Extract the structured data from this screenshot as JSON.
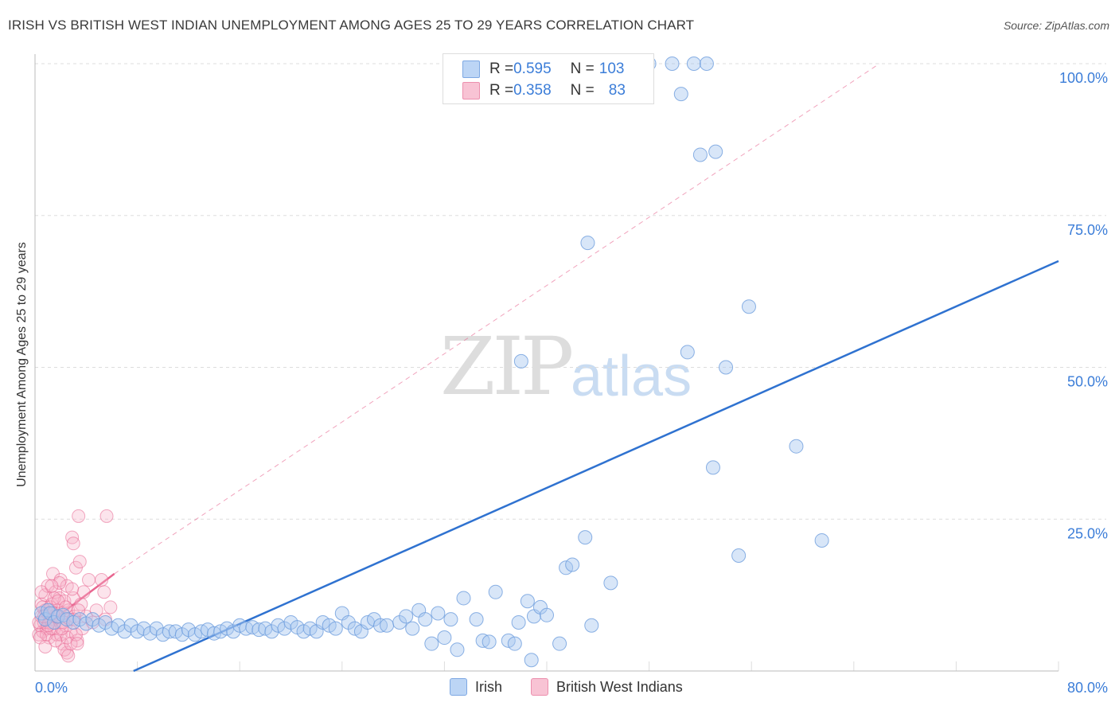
{
  "title": "IRISH VS BRITISH WEST INDIAN UNEMPLOYMENT AMONG AGES 25 TO 29 YEARS CORRELATION CHART",
  "source": "Source: ZipAtlas.com",
  "watermark_zip": "ZIP",
  "watermark_atlas": "atlas",
  "colors": {
    "irish": "#a9c8f0",
    "irish_line": "#2f72d0",
    "bwi": "#f5b3c8",
    "bwi_line": "#e8658f",
    "grid": "#dddddd",
    "tick_text": "#3b7dd8"
  },
  "legend": {
    "irish": {
      "r_label": "R = ",
      "r_value": "0.595",
      "n_label": "N = ",
      "n_value": "103"
    },
    "bwi": {
      "r_label": "R = ",
      "r_value": "0.358",
      "n_label": "N = ",
      "n_value": "83"
    }
  },
  "bottom_legend": {
    "irish": "Irish",
    "bwi": "British West Indians"
  },
  "chart_data": {
    "type": "scatter",
    "title": "IRISH VS BRITISH WEST INDIAN UNEMPLOYMENT AMONG AGES 25 TO 29 YEARS CORRELATION CHART",
    "xlabel": "",
    "ylabel": "Unemployment Among Ages 25 to 29 years",
    "xlim": [
      0,
      80
    ],
    "ylim": [
      0,
      100
    ],
    "x_tick_labels": [
      "0.0%",
      "80.0%"
    ],
    "y_ticks": [
      25,
      50,
      75,
      100
    ],
    "y_tick_labels": [
      "25.0%",
      "50.0%",
      "75.0%",
      "100.0%"
    ],
    "grid": true,
    "series": [
      {
        "name": "Irish",
        "trend": {
          "x": [
            7.7,
            80
          ],
          "y": [
            0,
            67.5
          ]
        },
        "points": [
          [
            0.5,
            9.5
          ],
          [
            0.8,
            8.5
          ],
          [
            1.0,
            10
          ],
          [
            1.2,
            9.5
          ],
          [
            1.5,
            8
          ],
          [
            1.8,
            9
          ],
          [
            2.2,
            9.2
          ],
          [
            2.5,
            8.5
          ],
          [
            3.0,
            8
          ],
          [
            3.5,
            8.5
          ],
          [
            4.0,
            7.8
          ],
          [
            4.5,
            8.5
          ],
          [
            5.0,
            7.5
          ],
          [
            5.5,
            8
          ],
          [
            6.0,
            7
          ],
          [
            6.5,
            7.5
          ],
          [
            7.0,
            6.5
          ],
          [
            7.5,
            7.5
          ],
          [
            8.0,
            6.5
          ],
          [
            8.5,
            7
          ],
          [
            9.0,
            6.2
          ],
          [
            9.5,
            7
          ],
          [
            10.0,
            6
          ],
          [
            10.5,
            6.5
          ],
          [
            11.0,
            6.5
          ],
          [
            11.5,
            6
          ],
          [
            12.0,
            6.8
          ],
          [
            12.5,
            6
          ],
          [
            13.0,
            6.5
          ],
          [
            13.5,
            6.8
          ],
          [
            14.0,
            6.2
          ],
          [
            14.5,
            6.5
          ],
          [
            15.0,
            7
          ],
          [
            15.5,
            6.5
          ],
          [
            16.0,
            7.5
          ],
          [
            16.5,
            7
          ],
          [
            17.0,
            7.2
          ],
          [
            17.5,
            6.8
          ],
          [
            18.0,
            7
          ],
          [
            18.5,
            6.5
          ],
          [
            19.0,
            7.5
          ],
          [
            19.5,
            7
          ],
          [
            20.0,
            8
          ],
          [
            20.5,
            7.2
          ],
          [
            21.0,
            6.5
          ],
          [
            21.5,
            7
          ],
          [
            22.0,
            6.5
          ],
          [
            22.5,
            8
          ],
          [
            23.0,
            7.5
          ],
          [
            23.5,
            7
          ],
          [
            24.0,
            9.5
          ],
          [
            24.5,
            8
          ],
          [
            25.0,
            7
          ],
          [
            25.5,
            6.5
          ],
          [
            26.0,
            8
          ],
          [
            26.5,
            8.5
          ],
          [
            27.0,
            7.5
          ],
          [
            27.5,
            7.5
          ],
          [
            28.5,
            8
          ],
          [
            29.0,
            9
          ],
          [
            29.5,
            7
          ],
          [
            30.0,
            10
          ],
          [
            30.5,
            8.5
          ],
          [
            31.5,
            9.5
          ],
          [
            31.0,
            4.5
          ],
          [
            32.0,
            5.5
          ],
          [
            32.5,
            8.5
          ],
          [
            33.0,
            3.5
          ],
          [
            33.5,
            12
          ],
          [
            34.5,
            8.5
          ],
          [
            35.0,
            5
          ],
          [
            35.5,
            4.8
          ],
          [
            36.0,
            13
          ],
          [
            37.0,
            5
          ],
          [
            37.5,
            4.5
          ],
          [
            37.8,
            8
          ],
          [
            38.5,
            11.5
          ],
          [
            38.8,
            1.8
          ],
          [
            39.0,
            9
          ],
          [
            39.5,
            10.5
          ],
          [
            40.0,
            9.2
          ],
          [
            41.0,
            4.5
          ],
          [
            41.5,
            17
          ],
          [
            42.0,
            17.5
          ],
          [
            43.0,
            22
          ],
          [
            43.5,
            7.5
          ],
          [
            45.0,
            14.5
          ],
          [
            38.0,
            51
          ],
          [
            43.2,
            70.5
          ],
          [
            51.0,
            52.5
          ],
          [
            54.0,
            50
          ],
          [
            55.8,
            60
          ],
          [
            53.0,
            33.5
          ],
          [
            59.5,
            37
          ],
          [
            55.0,
            19
          ],
          [
            61.5,
            21.5
          ],
          [
            50.5,
            95
          ],
          [
            52.0,
            85
          ],
          [
            53.2,
            85.5
          ],
          [
            48.0,
            100
          ],
          [
            49.8,
            100
          ],
          [
            51.5,
            100
          ],
          [
            52.5,
            100
          ]
        ]
      },
      {
        "name": "British West Indians",
        "trend": {
          "x": [
            0.5,
            6.2
          ],
          "y": [
            7,
            16
          ]
        },
        "extended_trend": {
          "x": [
            6.2,
            66
          ],
          "y": [
            16,
            100
          ]
        },
        "points": [
          [
            0.3,
            6
          ],
          [
            0.4,
            7.5
          ],
          [
            0.5,
            9
          ],
          [
            0.5,
            11
          ],
          [
            0.6,
            6.5
          ],
          [
            0.7,
            8
          ],
          [
            0.8,
            10
          ],
          [
            0.8,
            12.5
          ],
          [
            0.9,
            7
          ],
          [
            1.0,
            9.5
          ],
          [
            1.0,
            14
          ],
          [
            1.1,
            5.5
          ],
          [
            1.2,
            8.5
          ],
          [
            1.3,
            11
          ],
          [
            1.4,
            16
          ],
          [
            1.5,
            7
          ],
          [
            1.5,
            9
          ],
          [
            1.6,
            13
          ],
          [
            1.7,
            6
          ],
          [
            1.8,
            10
          ],
          [
            1.9,
            12
          ],
          [
            2.0,
            8
          ],
          [
            2.0,
            15
          ],
          [
            2.1,
            4.5
          ],
          [
            2.2,
            9.5
          ],
          [
            2.3,
            11.5
          ],
          [
            2.4,
            7.5
          ],
          [
            2.5,
            14
          ],
          [
            2.5,
            3
          ],
          [
            2.6,
            10
          ],
          [
            2.7,
            8.5
          ],
          [
            2.8,
            6.5
          ],
          [
            2.9,
            22
          ],
          [
            3.0,
            12
          ],
          [
            3.0,
            21
          ],
          [
            3.1,
            9
          ],
          [
            3.2,
            17
          ],
          [
            3.3,
            5
          ],
          [
            3.4,
            25.5
          ],
          [
            3.5,
            18
          ],
          [
            3.6,
            11
          ],
          [
            3.7,
            7
          ],
          [
            3.8,
            13
          ],
          [
            4.0,
            9
          ],
          [
            4.2,
            15
          ],
          [
            4.5,
            8
          ],
          [
            4.8,
            10
          ],
          [
            5.2,
            15
          ],
          [
            5.4,
            13
          ],
          [
            5.5,
            8.5
          ],
          [
            5.6,
            25.5
          ],
          [
            5.9,
            10.5
          ],
          [
            0.3,
            8
          ],
          [
            0.5,
            13
          ],
          [
            0.6,
            10.5
          ],
          [
            0.9,
            6
          ],
          [
            1.1,
            8
          ],
          [
            1.2,
            10.5
          ],
          [
            1.3,
            7
          ],
          [
            1.5,
            12
          ],
          [
            1.7,
            9
          ],
          [
            1.9,
            14.5
          ],
          [
            2.0,
            6
          ],
          [
            2.2,
            8
          ],
          [
            2.3,
            3.5
          ],
          [
            2.5,
            5.5
          ],
          [
            2.8,
            4.5
          ],
          [
            3.0,
            8.5
          ],
          [
            3.2,
            6
          ],
          [
            3.4,
            10
          ],
          [
            0.4,
            5.5
          ],
          [
            0.8,
            4
          ],
          [
            1.0,
            7.5
          ],
          [
            1.4,
            9.5
          ],
          [
            1.8,
            11.5
          ],
          [
            2.6,
            2.5
          ],
          [
            2.9,
            13.5
          ],
          [
            3.3,
            4.5
          ],
          [
            0.7,
            9
          ],
          [
            1.6,
            5
          ],
          [
            2.1,
            7
          ],
          [
            2.4,
            10.5
          ],
          [
            1.3,
            14
          ]
        ]
      }
    ]
  },
  "axis_labels": {
    "x_min": "0.0%",
    "x_max": "80.0%"
  }
}
